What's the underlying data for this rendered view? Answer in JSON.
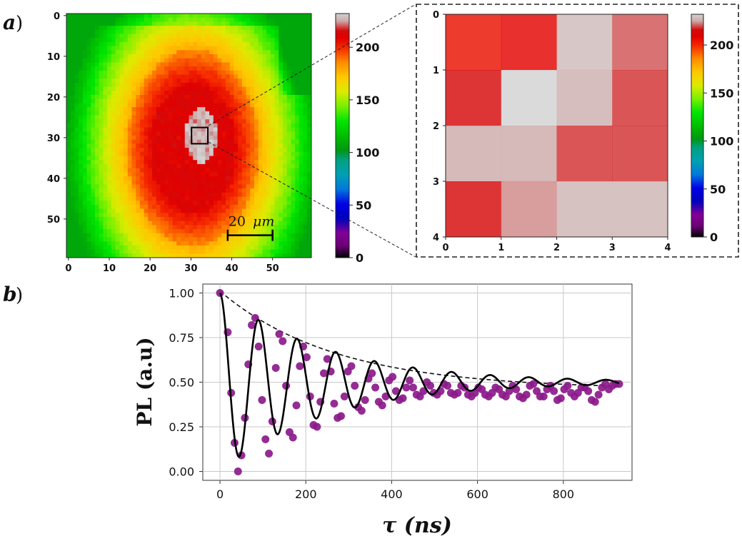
{
  "panels": {
    "a": {
      "label": "a",
      "paren": ")"
    },
    "b": {
      "label": "b",
      "paren": ")"
    }
  },
  "colors": {
    "data_points": "#8B1A8B",
    "fit": "#000000",
    "envelope": "#111111"
  },
  "chart_data": [
    {
      "type": "heatmap",
      "id": "pl-map",
      "x_ticks": [
        0,
        10,
        20,
        30,
        40,
        50
      ],
      "y_ticks": [
        0,
        10,
        20,
        30,
        40,
        50
      ],
      "xlim": [
        0,
        60
      ],
      "ylim": [
        0,
        60
      ],
      "colormap": "nipy_spectral",
      "colorbar": {
        "ticks": [
          0,
          50,
          100,
          150,
          200
        ],
        "range": [
          0,
          232
        ]
      },
      "scale_bar": {
        "value": "20",
        "unit": "μm",
        "length": 11
      },
      "highlight_box": {
        "x": [
          31,
          35
        ],
        "y": [
          28,
          32
        ]
      }
    },
    {
      "type": "heatmap",
      "id": "zoom-map",
      "x_ticks": [
        0,
        1,
        2,
        3,
        4
      ],
      "y_ticks": [
        0,
        1,
        2,
        3,
        4
      ],
      "values": [
        [
          205,
          208,
          228,
          220
        ],
        [
          215,
          232,
          226,
          218
        ],
        [
          225,
          225,
          218,
          218
        ],
        [
          215,
          223,
          227,
          227
        ]
      ],
      "colorbar": {
        "ticks": [
          0,
          50,
          100,
          150,
          200
        ],
        "range": [
          0,
          232
        ]
      }
    },
    {
      "type": "line",
      "id": "pl-decay",
      "xlabel": "τ (ns)",
      "ylabel": "PL (a.u)",
      "xlim": [
        -40,
        960
      ],
      "ylim": [
        -0.05,
        1.05
      ],
      "x_ticks": [
        0,
        200,
        400,
        600,
        800
      ],
      "y_ticks": [
        "0.00",
        "0.25",
        "0.50",
        "0.75",
        "1.00"
      ],
      "grid": true,
      "series": [
        {
          "kind": "scatter",
          "x": [
            0,
            18,
            26,
            34,
            42,
            50,
            58,
            66,
            74,
            82,
            90,
            98,
            106,
            114,
            122,
            130,
            138,
            146,
            154,
            162,
            170,
            178,
            186,
            194,
            202,
            210,
            218,
            226,
            234,
            242,
            250,
            258,
            266,
            274,
            282,
            290,
            298,
            306,
            314,
            322,
            330,
            338,
            346,
            354,
            362,
            370,
            378,
            386,
            394,
            402,
            410,
            418,
            426,
            434,
            442,
            450,
            458,
            466,
            474,
            482,
            490,
            498,
            506,
            514,
            522,
            530,
            538,
            546,
            554,
            562,
            570,
            578,
            586,
            594,
            602,
            610,
            618,
            626,
            634,
            642,
            650,
            658,
            666,
            674,
            682,
            690,
            698,
            706,
            714,
            722,
            730,
            738,
            746,
            754,
            762,
            770,
            778,
            786,
            794,
            802,
            810,
            818,
            826,
            834,
            842,
            850,
            858,
            866,
            874,
            882,
            890,
            898,
            906,
            914,
            922,
            930
          ],
          "y": [
            1.0,
            0.78,
            0.44,
            0.16,
            0.0,
            0.09,
            0.3,
            0.6,
            0.82,
            0.86,
            0.7,
            0.4,
            0.18,
            0.1,
            0.28,
            0.58,
            0.77,
            0.73,
            0.48,
            0.22,
            0.19,
            0.37,
            0.59,
            0.7,
            0.64,
            0.42,
            0.26,
            0.25,
            0.39,
            0.55,
            0.63,
            0.56,
            0.38,
            0.3,
            0.31,
            0.42,
            0.56,
            0.59,
            0.48,
            0.36,
            0.34,
            0.4,
            0.52,
            0.55,
            0.47,
            0.39,
            0.37,
            0.42,
            0.51,
            0.53,
            0.45,
            0.4,
            0.41,
            0.47,
            0.51,
            0.47,
            0.43,
            0.42,
            0.45,
            0.5,
            0.48,
            0.44,
            0.43,
            0.45,
            0.49,
            0.48,
            0.44,
            0.43,
            0.44,
            0.48,
            0.47,
            0.43,
            0.42,
            0.44,
            0.47,
            0.46,
            0.43,
            0.42,
            0.44,
            0.47,
            0.46,
            0.43,
            0.42,
            0.45,
            0.48,
            0.46,
            0.42,
            0.41,
            0.43,
            0.48,
            0.49,
            0.45,
            0.42,
            0.42,
            0.46,
            0.48,
            0.45,
            0.4,
            0.41,
            0.46,
            0.48,
            0.44,
            0.42,
            0.44,
            0.47,
            0.47,
            0.45,
            0.4,
            0.39,
            0.43,
            0.47,
            0.49,
            0.46,
            0.48,
            0.49,
            0.49
          ]
        },
        {
          "kind": "line",
          "name": "fit",
          "style": "solid",
          "x_range": [
            0,
            930
          ],
          "samples": 600,
          "model": {
            "a": 0.5,
            "tau": 250,
            "period": 90,
            "c": 0.5
          }
        },
        {
          "kind": "line",
          "name": "envelope",
          "style": "dashed",
          "x_range": [
            0,
            930
          ],
          "samples": 200,
          "model": {
            "a": 0.55,
            "tau": 270,
            "c": 0.46
          }
        }
      ]
    }
  ]
}
